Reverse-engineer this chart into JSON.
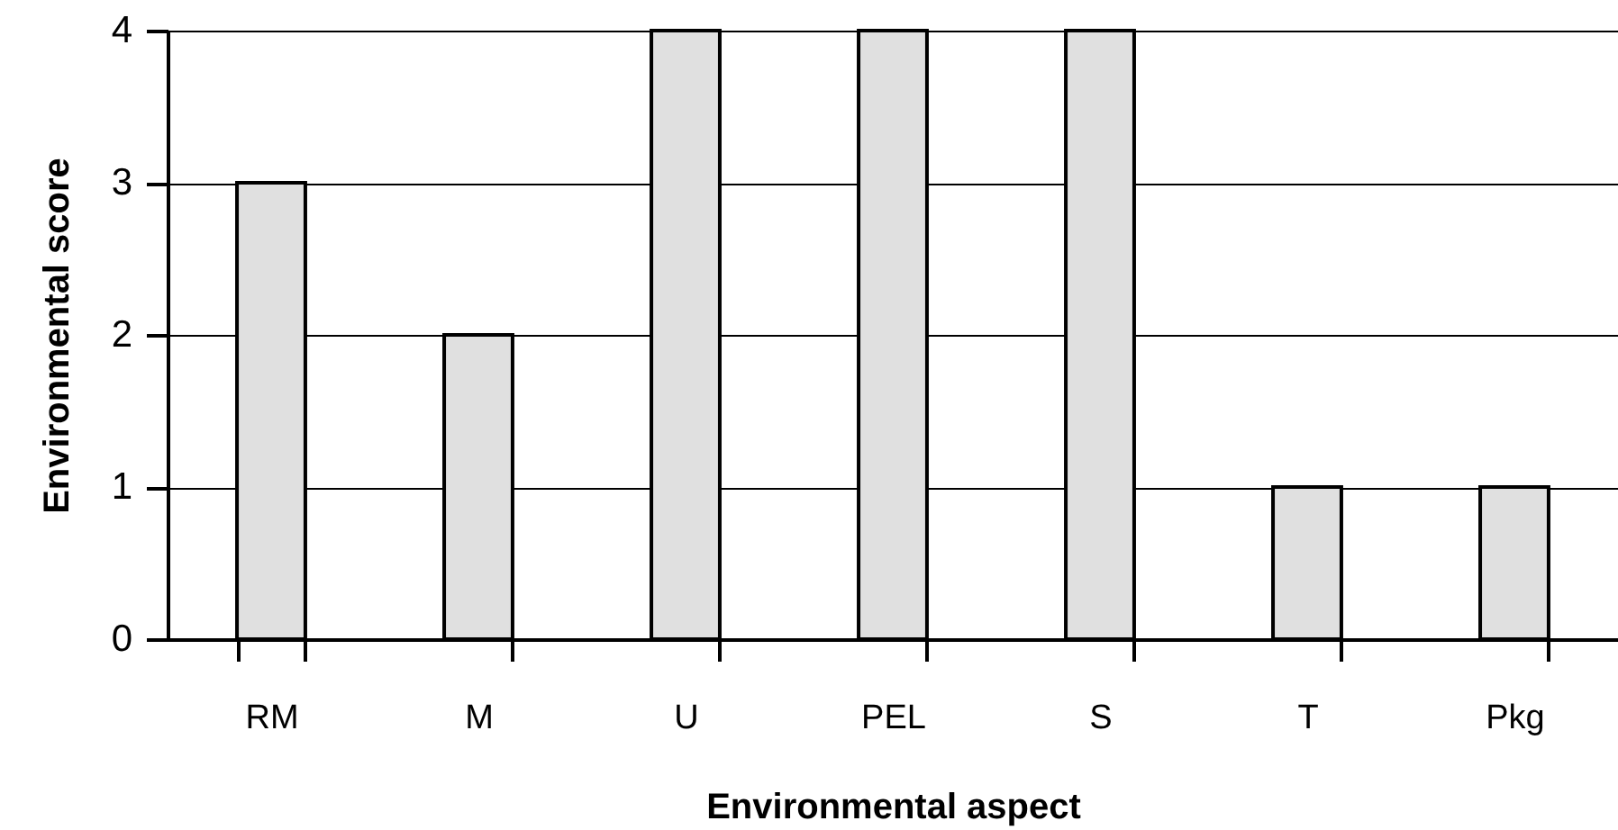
{
  "chart_data": {
    "type": "bar",
    "xlabel": "Environmental aspect",
    "ylabel": "Environmental score",
    "categories": [
      "RM",
      "M",
      "U",
      "PEL",
      "S",
      "T",
      "Pkg"
    ],
    "values": [
      3,
      2,
      4,
      4,
      4,
      1,
      1
    ],
    "color": "#e0e0e0",
    "ylim": [
      0,
      4
    ],
    "yticks": [
      0,
      1,
      2,
      3,
      4
    ],
    "grid": "y"
  }
}
